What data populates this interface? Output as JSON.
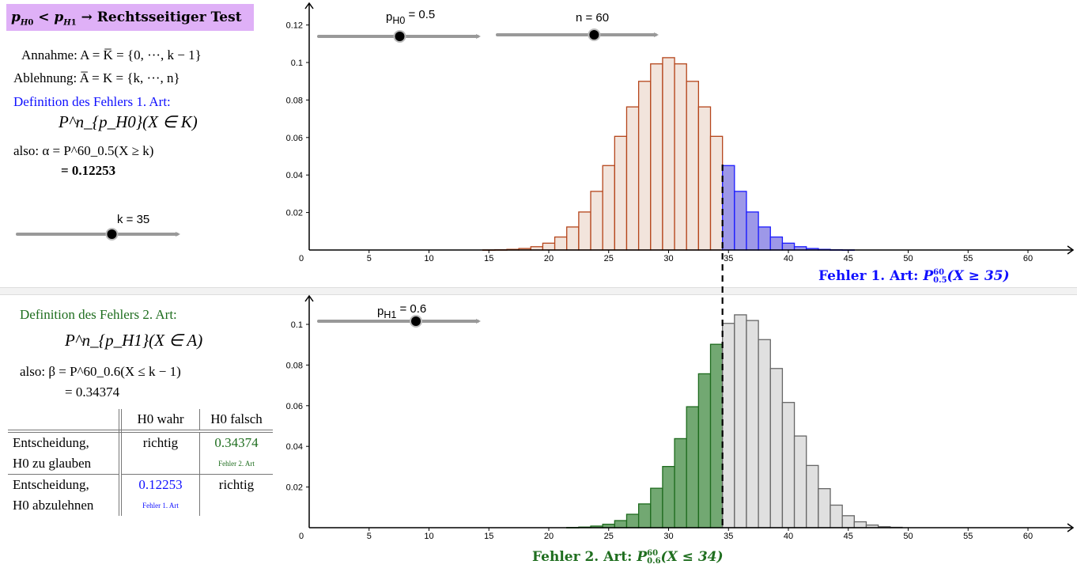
{
  "header": {
    "title": "p_{H0} < p_{H1} → Rechtsseitiger Test",
    "title_parts": [
      "p",
      "H",
      "0",
      " < ",
      "p",
      "H",
      "1",
      " → Rechtsseitiger Test"
    ]
  },
  "left_top": {
    "annahme": "Annahme: A = K̅ = {0, ···, k − 1}",
    "ablehnung": "Ablehnung: A̅ = K = {k, ···, n}",
    "def1_title": "Definition des Fehlers 1. Art:",
    "def1_formula": "P^n_{p_H0}(X ∈ K)",
    "alpha_line": "also: α = P^60_0.5(X ≥ k)",
    "alpha_value": "= 0.12253"
  },
  "left_bottom": {
    "def2_title": "Definition des Fehlers 2. Art:",
    "def2_formula": "P^n_{p_H1}(X ∈ A)",
    "beta_line": "also: β = P^60_0.6(X ≤ k − 1)",
    "beta_value": "= 0.34374"
  },
  "sliders": {
    "k": {
      "label": "k = 35",
      "value": 35,
      "fraction": 0.58
    },
    "p_h0": {
      "label_main": "p",
      "label_sub": "H0",
      "label_value": "= 0.5",
      "value": 0.5,
      "fraction": 0.5
    },
    "n": {
      "label": "n = 60",
      "value": 60,
      "fraction": 0.6
    },
    "p_h1": {
      "label_main": "p",
      "label_sub": "H1",
      "label_value": "= 0.6",
      "value": 0.6,
      "fraction": 0.6
    }
  },
  "table": {
    "headers": [
      "",
      "H0 wahr",
      "H0 falsch"
    ],
    "rows": [
      {
        "label1": "Entscheidung,",
        "label2": "H0 zu glauben",
        "c2": "richtig",
        "c3": "0.34374",
        "c3_note": "Fehler 2. Art"
      },
      {
        "label1": "Entscheidung,",
        "label2": "H0 abzulehnen",
        "c2": "0.12253",
        "c2_note": "Fehler 1. Art",
        "c3": "richtig"
      }
    ]
  },
  "colors": {
    "accept_h0": "#b5451b",
    "error1": "#1a1aff",
    "error2": "#1e6b1e",
    "rest_h1": "#666666",
    "title_bg": "#dfb0f7"
  },
  "chart_data": [
    {
      "type": "bar",
      "title": "",
      "annotation": "Fehler 1. Art: P^60_0.5(X ≥ 35)",
      "annotation_parts": [
        "Fehler 1. Art: ",
        "P",
        "60",
        "0.5",
        "(X ≥ 35)"
      ],
      "xlim": [
        0,
        62
      ],
      "ylim": [
        0,
        0.13
      ],
      "x_ticks": [
        "0",
        "5",
        "10",
        "15",
        "20",
        "25",
        "30",
        "35",
        "40",
        "45",
        "50",
        "55",
        "60"
      ],
      "y_ticks": [
        "0.02",
        "0.04",
        "0.06",
        "0.08",
        "0.1",
        "0.12"
      ],
      "threshold": 34.5,
      "x": [
        15,
        16,
        17,
        18,
        19,
        20,
        21,
        22,
        23,
        24,
        25,
        26,
        27,
        28,
        29,
        30,
        31,
        32,
        33,
        34,
        35,
        36,
        37,
        38,
        39,
        40,
        41,
        42,
        43,
        44,
        45
      ],
      "values": [
        5e-05,
        0.00013,
        0.00034,
        0.0008,
        0.00177,
        0.00364,
        0.00693,
        0.01228,
        0.02028,
        0.03127,
        0.04503,
        0.06062,
        0.07633,
        0.08996,
        0.09927,
        0.10258,
        0.09927,
        0.08996,
        0.07633,
        0.06062,
        0.04503,
        0.03127,
        0.02028,
        0.01228,
        0.00693,
        0.00364,
        0.00177,
        0.0008,
        0.00034,
        0.00013,
        5e-05
      ]
    },
    {
      "type": "bar",
      "title": "",
      "annotation": "Fehler 2. Art: P^60_0.6(X ≤ 34)",
      "annotation_parts": [
        "Fehler 2. Art: ",
        "P",
        "60",
        "0.6",
        "(X ≤ 34)"
      ],
      "xlim": [
        0,
        62
      ],
      "ylim": [
        0,
        0.11
      ],
      "x_ticks": [
        "0",
        "5",
        "10",
        "15",
        "20",
        "25",
        "30",
        "35",
        "40",
        "45",
        "50",
        "55",
        "60"
      ],
      "y_ticks": [
        "0.02",
        "0.04",
        "0.06",
        "0.08",
        "0.1"
      ],
      "threshold": 34.5,
      "x": [
        22,
        23,
        24,
        25,
        26,
        27,
        28,
        29,
        30,
        31,
        32,
        33,
        34,
        35,
        36,
        37,
        38,
        39,
        40,
        41,
        42,
        43,
        44,
        45,
        46,
        47,
        48,
        49
      ],
      "values": [
        0.0001,
        0.0003,
        0.0008,
        0.0017,
        0.0035,
        0.0066,
        0.0117,
        0.0194,
        0.0301,
        0.0438,
        0.0595,
        0.0757,
        0.0902,
        0.1005,
        0.1047,
        0.1019,
        0.0925,
        0.0783,
        0.0616,
        0.0451,
        0.0306,
        0.0192,
        0.0111,
        0.0059,
        0.0029,
        0.0013,
        0.0005,
        0.0002
      ]
    }
  ]
}
